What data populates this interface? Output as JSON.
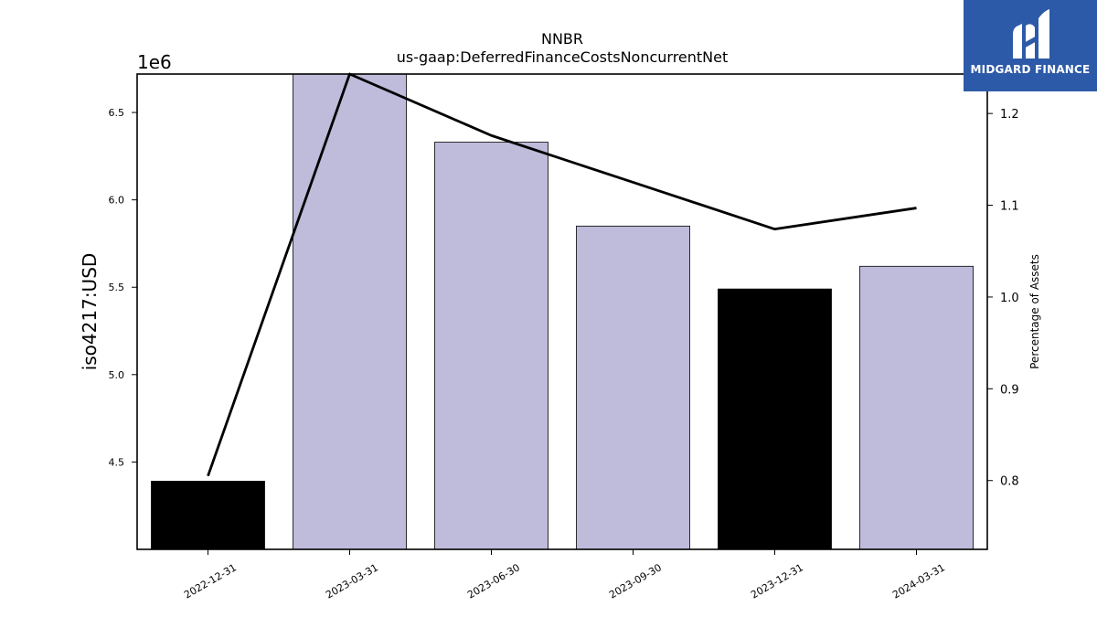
{
  "brand": {
    "name": "MIDGARD FINANCE",
    "bg_color": "#2c5aa8"
  },
  "chart_data": {
    "type": "bar",
    "title": "NNBR",
    "subtitle": "us-gaap:DeferredFinanceCostsNoncurrentNet",
    "ylabel": "iso4217:USD",
    "y2label": "Percentage of Assets",
    "y_offset_label": "1e6",
    "categories": [
      "2022-12-31",
      "2023-03-31",
      "2023-06-30",
      "2023-09-30",
      "2023-12-31",
      "2024-03-31"
    ],
    "values": [
      4390000,
      6720000,
      6330000,
      5850000,
      5490000,
      5620000
    ],
    "bar_colors": [
      "#000000",
      "#bebbdb",
      "#bebbdb",
      "#bebbdb",
      "#000000",
      "#bebbdb"
    ],
    "ylim": [
      4000000,
      6720000
    ],
    "yticks": [
      4500000,
      5000000,
      5500000,
      6000000,
      6500000
    ],
    "ytick_labels": [
      "4.5",
      "5.0",
      "5.5",
      "6.0",
      "6.5"
    ],
    "line_series": {
      "name": "Percentage of Assets",
      "values": [
        0.805,
        1.243,
        1.176,
        1.125,
        1.074,
        1.097
      ],
      "color": "#000000"
    },
    "y2lim": [
      0.725,
      1.243
    ],
    "y2ticks": [
      0.8,
      0.9,
      1.0,
      1.1,
      1.2
    ],
    "y2tick_labels": [
      "0.8",
      "0.9",
      "1.0",
      "1.1",
      "1.2"
    ],
    "grid": false
  }
}
